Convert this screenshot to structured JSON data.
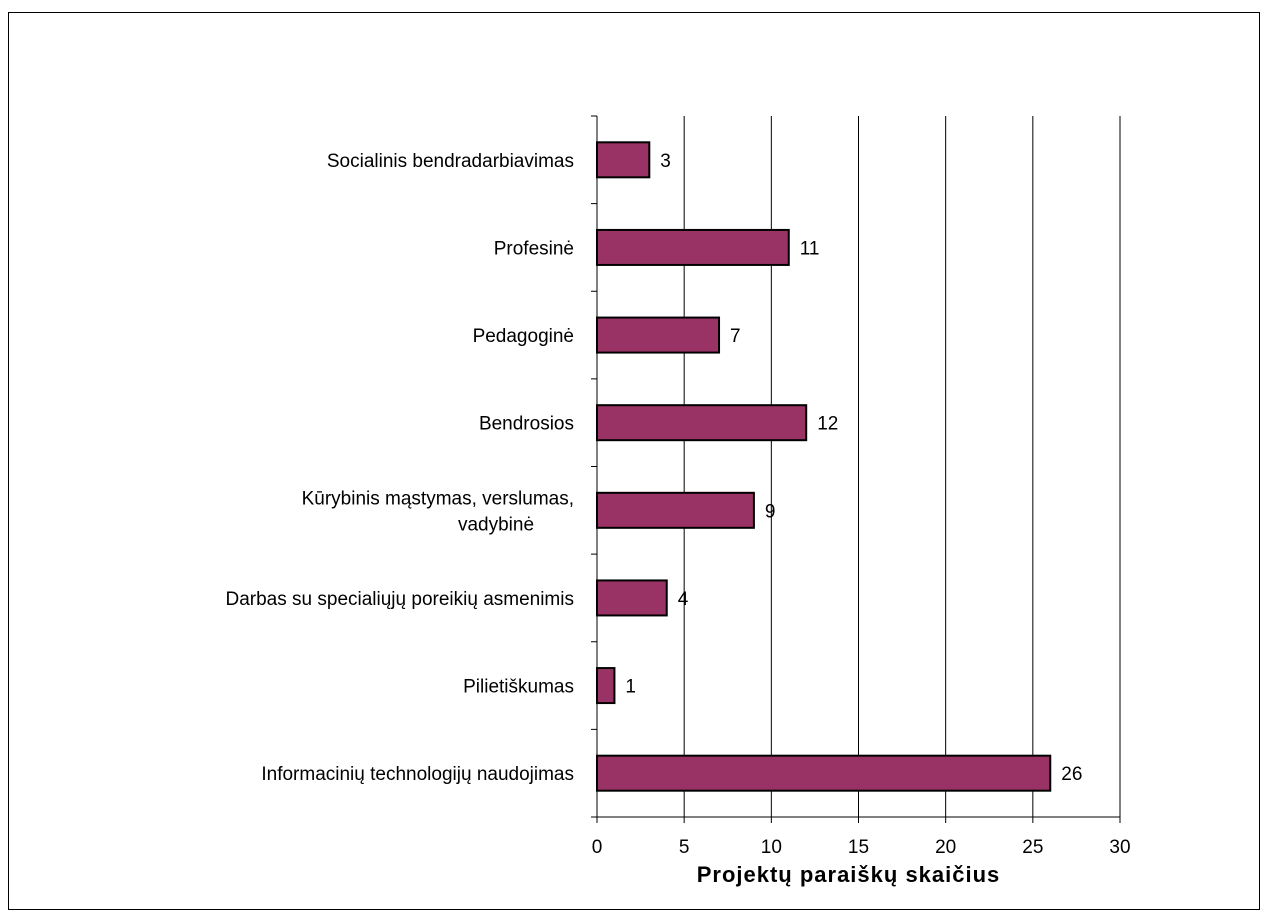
{
  "chart_data": {
    "type": "bar",
    "orientation": "horizontal",
    "title": "",
    "xlabel": "Projektų paraiškų skaičius",
    "ylabel": "",
    "xlim": [
      0,
      30
    ],
    "x_ticks": [
      0,
      5,
      10,
      15,
      20,
      25,
      30
    ],
    "x_tick_labels": [
      "0",
      "5",
      "10",
      "15",
      "20",
      "25",
      "30"
    ],
    "grid": "vertical",
    "legend": "none",
    "bar_color": "#993366",
    "categories": [
      "Socialinis bendradarbiavimas",
      "Profesinė",
      "Pedagoginė",
      "Bendrosios",
      "Kūrybinis mąstymas, verslumas, vadybinė",
      "Darbas su specialiųjų poreikių asmenimis",
      "Pilietiškumas",
      "Informacinių technologijų naudojimas"
    ],
    "category_label_lines": [
      [
        "Socialinis bendradarbiavimas"
      ],
      [
        "Profesinė"
      ],
      [
        "Pedagoginė"
      ],
      [
        "Bendrosios"
      ],
      [
        "Kūrybinis mąstymas, verslumas,",
        "vadybinė"
      ],
      [
        "Darbas su specialiųjų poreikių asmenimis"
      ],
      [
        "Pilietiškumas"
      ],
      [
        "Informacinių technologijų naudojimas"
      ]
    ],
    "values": [
      3,
      11,
      7,
      12,
      9,
      4,
      1,
      26
    ],
    "data_labels": [
      "3",
      "11",
      "7",
      "12",
      "9",
      "4",
      "1",
      "26"
    ]
  }
}
